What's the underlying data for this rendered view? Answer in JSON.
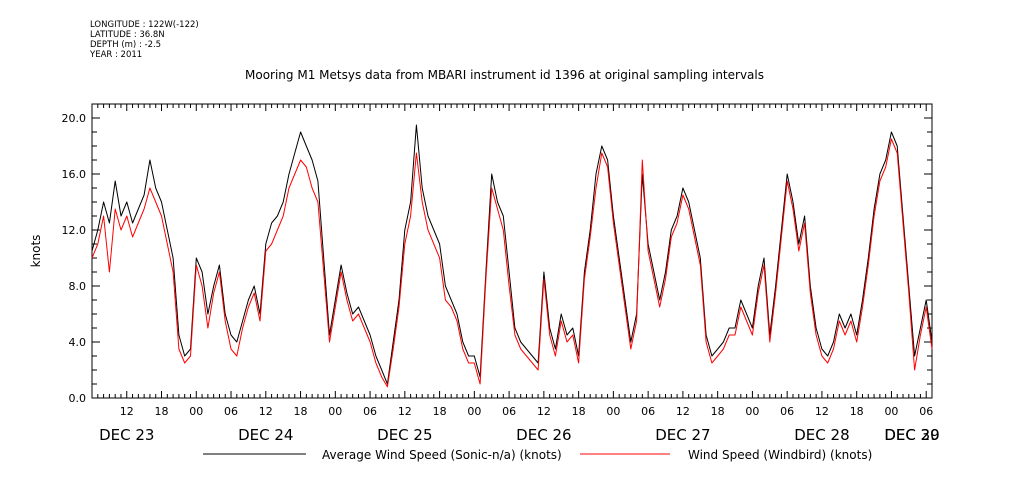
{
  "metadata": [
    "LONGITUDE : 122W(-122)",
    "LATITUDE : 36.8N",
    "DEPTH (m) : -2.5",
    "YEAR : 2011"
  ],
  "chart_data": {
    "type": "line",
    "title": "Mooring M1 Metsys data from MBARI instrument id 1396 at original sampling intervals",
    "ylabel": "knots",
    "xlabel": "",
    "ylim": [
      0,
      21
    ],
    "yticks": [
      0,
      4,
      8,
      12,
      16,
      20
    ],
    "ytick_labels": [
      "0.0",
      "4.0",
      "8.0",
      "12.0",
      "16.0",
      "20.0"
    ],
    "x_unit": "hours since 00 DEC 23 (2011)",
    "xlim": [
      6,
      151
    ],
    "xticks": [
      12,
      18,
      24,
      30,
      36,
      42,
      48,
      54,
      60,
      66,
      72,
      78,
      84,
      90,
      96,
      102,
      108,
      114,
      120,
      126,
      132,
      138,
      144,
      150
    ],
    "xtick_labels": [
      "12",
      "18",
      "00",
      "06",
      "12",
      "18",
      "00",
      "06",
      "12",
      "18",
      "00",
      "06",
      "12",
      "18",
      "00",
      "06",
      "12",
      "18",
      "00",
      "06",
      "12",
      "18",
      "00",
      "06"
    ],
    "day_labels": [
      {
        "label": "DEC 23",
        "x": 12
      },
      {
        "label": "DEC 24",
        "x": 36
      },
      {
        "label": "DEC 25",
        "x": 60
      },
      {
        "label": "DEC 26",
        "x": 84
      },
      {
        "label": "DEC 27",
        "x": 108
      },
      {
        "label": "DEC 28",
        "x": 132
      },
      {
        "label": "DEC 29",
        "x": 156
      },
      {
        "label": "DEC 30",
        "x": 168
      }
    ],
    "grid": false,
    "legend_position": "bottom",
    "series": [
      {
        "name": "Average Wind Speed (Sonic-n/a) (knots)",
        "color": "#000000",
        "x": [
          6,
          7,
          8,
          9,
          10,
          11,
          12,
          13,
          14,
          15,
          16,
          17,
          18,
          19,
          20,
          21,
          22,
          23,
          24,
          25,
          26,
          27,
          28,
          29,
          30,
          31,
          32,
          33,
          34,
          35,
          36,
          37,
          38,
          39,
          40,
          41,
          42,
          43,
          44,
          45,
          46,
          47,
          48,
          49,
          50,
          51,
          52,
          53,
          54,
          55,
          56,
          57,
          58,
          59,
          60,
          61,
          62,
          63,
          64,
          65,
          66,
          67,
          68,
          69,
          70,
          71,
          72,
          73,
          74,
          75,
          76,
          77,
          78,
          79,
          80,
          81,
          82,
          83,
          84,
          85,
          86,
          87,
          88,
          89,
          90,
          91,
          92,
          93,
          94,
          95,
          96,
          97,
          98,
          99,
          100,
          101,
          102,
          103,
          104,
          105,
          106,
          107,
          108,
          109,
          110,
          111,
          112,
          113,
          114,
          115,
          116,
          117,
          118,
          119,
          120,
          121,
          122,
          123,
          124,
          125,
          126,
          127,
          128,
          129,
          130,
          131,
          132,
          133,
          134,
          135,
          136,
          137,
          138,
          139,
          140,
          141,
          142,
          143,
          144,
          145,
          146,
          147,
          148,
          149,
          150,
          151
        ],
        "values": [
          10.5,
          12,
          14,
          12.5,
          15.5,
          13,
          14,
          12.5,
          13.5,
          14.5,
          17,
          15,
          14,
          12,
          10,
          4.5,
          3,
          3.5,
          10,
          9,
          6,
          8,
          9.5,
          6,
          4.5,
          4,
          5.5,
          7,
          8,
          6,
          11,
          12.5,
          13,
          14,
          16,
          17.5,
          19,
          18,
          17,
          15.5,
          10,
          4.5,
          7,
          9.5,
          7.5,
          6,
          6.5,
          5.5,
          4.5,
          3,
          2,
          1,
          4,
          7,
          12,
          14,
          19.5,
          15,
          13,
          12,
          11,
          8,
          7,
          6,
          4,
          3,
          3,
          1.5,
          9,
          16,
          14,
          13,
          9,
          5,
          4,
          3.5,
          3,
          2.5,
          9,
          5,
          3.5,
          6,
          4.5,
          5,
          3,
          9,
          12,
          16,
          18,
          17,
          13,
          10,
          7,
          4,
          6,
          16,
          11,
          9,
          7,
          9,
          12,
          13,
          15,
          14,
          12,
          10,
          4.5,
          3,
          3.5,
          4,
          5,
          5,
          7,
          6,
          5,
          8,
          10,
          4.5,
          8,
          12,
          16,
          14,
          11,
          13,
          8,
          5,
          3.5,
          3,
          4,
          6,
          5,
          6,
          4.5,
          7,
          10,
          13.5,
          16,
          17,
          19,
          18,
          13,
          8,
          3,
          5,
          7,
          4
        ]
      },
      {
        "name": "Wind Speed (Windbird) (knots)",
        "color": "#ff0000",
        "x": [
          6,
          7,
          8,
          9,
          10,
          11,
          12,
          13,
          14,
          15,
          16,
          17,
          18,
          19,
          20,
          21,
          22,
          23,
          24,
          25,
          26,
          27,
          28,
          29,
          30,
          31,
          32,
          33,
          34,
          35,
          36,
          37,
          38,
          39,
          40,
          41,
          42,
          43,
          44,
          45,
          46,
          47,
          48,
          49,
          50,
          51,
          52,
          53,
          54,
          55,
          56,
          57,
          58,
          59,
          60,
          61,
          62,
          63,
          64,
          65,
          66,
          67,
          68,
          69,
          70,
          71,
          72,
          73,
          74,
          75,
          76,
          77,
          78,
          79,
          80,
          81,
          82,
          83,
          84,
          85,
          86,
          87,
          88,
          89,
          90,
          91,
          92,
          93,
          94,
          95,
          96,
          97,
          98,
          99,
          100,
          101,
          102,
          103,
          104,
          105,
          106,
          107,
          108,
          109,
          110,
          111,
          112,
          113,
          114,
          115,
          116,
          117,
          118,
          119,
          120,
          121,
          122,
          123,
          124,
          125,
          126,
          127,
          128,
          129,
          130,
          131,
          132,
          133,
          134,
          135,
          136,
          137,
          138,
          139,
          140,
          141,
          142,
          143,
          144,
          145,
          146,
          147,
          148,
          149,
          150,
          151
        ],
        "values": [
          10,
          11,
          13,
          9,
          13.5,
          12,
          13,
          11.5,
          12.5,
          13.5,
          15,
          14,
          13,
          11,
          9,
          3.5,
          2.5,
          3,
          9.5,
          8,
          5,
          7.5,
          9,
          5.5,
          3.5,
          3,
          5,
          6.5,
          7.5,
          5.5,
          10.5,
          11,
          12,
          13,
          15,
          16,
          17,
          16.5,
          15,
          14,
          9,
          4,
          6.5,
          9,
          7,
          5.5,
          6,
          5,
          4,
          2.5,
          1.5,
          0.8,
          3.5,
          6.5,
          11,
          13,
          17.5,
          14,
          12,
          11,
          10,
          7,
          6.5,
          5.5,
          3.5,
          2.5,
          2.5,
          1,
          8.5,
          15,
          13.5,
          12,
          8,
          4.5,
          3.5,
          3,
          2.5,
          2,
          8.5,
          4.5,
          3,
          5.5,
          4,
          4.5,
          2.5,
          8.5,
          11.5,
          15,
          17.5,
          16.5,
          12.5,
          9.5,
          6.5,
          3.5,
          5.5,
          17,
          10.5,
          8.5,
          6.5,
          8.5,
          11.5,
          12.5,
          14.5,
          13.5,
          11.5,
          9.5,
          4,
          2.5,
          3,
          3.5,
          4.5,
          4.5,
          6.5,
          5.5,
          4.5,
          7.5,
          9.5,
          4,
          7.5,
          11.5,
          15.5,
          13.5,
          10.5,
          12.5,
          7.5,
          4.5,
          3,
          2.5,
          3.5,
          5.5,
          4.5,
          5.5,
          4,
          6.5,
          9.5,
          13,
          15.5,
          16.5,
          18.5,
          17.5,
          12.5,
          7.5,
          2,
          4.5,
          6.5,
          3.5
        ]
      }
    ]
  }
}
